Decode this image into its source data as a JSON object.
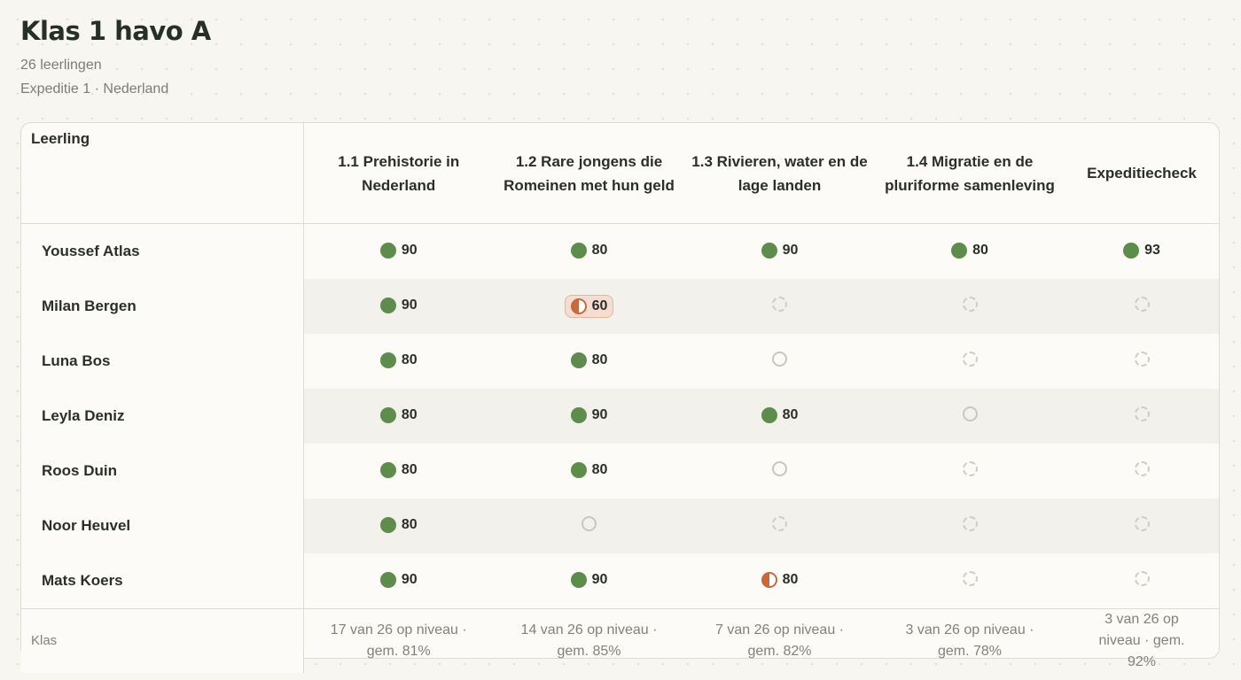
{
  "header": {
    "title": "Klas 1 havo A",
    "subtitle": "26 leerlingen",
    "context": "Expeditie 1 · Nederland"
  },
  "table": {
    "name_header": "Leerling",
    "columns": [
      "1.1 Prehistorie in Nederland",
      "1.2 Rare jongens die Romeinen met hun geld",
      "1.3 Rivieren, water en de lage landen",
      "1.4 Migratie en de pluriforme samenleving",
      "Expeditiecheck"
    ],
    "rows": [
      {
        "name": "Youssef Atlas",
        "cells": [
          {
            "status": "good",
            "score": 90
          },
          {
            "status": "good",
            "score": 80
          },
          {
            "status": "good",
            "score": 90
          },
          {
            "status": "good",
            "score": 80
          },
          {
            "status": "good",
            "score": 93
          }
        ]
      },
      {
        "name": "Milan Bergen",
        "cells": [
          {
            "status": "good",
            "score": 90
          },
          {
            "status": "warning",
            "score": 60
          },
          {
            "status": "locked",
            "score": null
          },
          {
            "status": "locked",
            "score": null
          },
          {
            "status": "locked",
            "score": null
          }
        ]
      },
      {
        "name": "Luna Bos",
        "cells": [
          {
            "status": "good",
            "score": 80
          },
          {
            "status": "good",
            "score": 80
          },
          {
            "status": "open",
            "score": null
          },
          {
            "status": "locked",
            "score": null
          },
          {
            "status": "locked",
            "score": null
          }
        ]
      },
      {
        "name": "Leyla Deniz",
        "cells": [
          {
            "status": "good",
            "score": 80
          },
          {
            "status": "good",
            "score": 90
          },
          {
            "status": "good",
            "score": 80
          },
          {
            "status": "open",
            "score": null
          },
          {
            "status": "locked",
            "score": null
          }
        ]
      },
      {
        "name": "Roos Duin",
        "cells": [
          {
            "status": "good",
            "score": 80
          },
          {
            "status": "good",
            "score": 80
          },
          {
            "status": "open",
            "score": null
          },
          {
            "status": "locked",
            "score": null
          },
          {
            "status": "locked",
            "score": null
          }
        ]
      },
      {
        "name": "Noor Heuvel",
        "cells": [
          {
            "status": "good",
            "score": 80
          },
          {
            "status": "open",
            "score": null
          },
          {
            "status": "locked",
            "score": null
          },
          {
            "status": "locked",
            "score": null
          },
          {
            "status": "locked",
            "score": null
          }
        ]
      },
      {
        "name": "Mats Koers",
        "cells": [
          {
            "status": "good",
            "score": 90
          },
          {
            "status": "good",
            "score": 90
          },
          {
            "status": "half",
            "score": 80
          },
          {
            "status": "locked",
            "score": null
          },
          {
            "status": "locked",
            "score": null
          }
        ]
      }
    ],
    "footer_label": "Klas",
    "footer": [
      "17 van 26 op niveau · gem. 81%",
      "14 van 26 op niveau · gem. 85%",
      "7 van 26 op niveau · gem. 82%",
      "3 van 26 op niveau · gem. 78%",
      "3 van 26 op niveau · gem. 92%"
    ]
  }
}
